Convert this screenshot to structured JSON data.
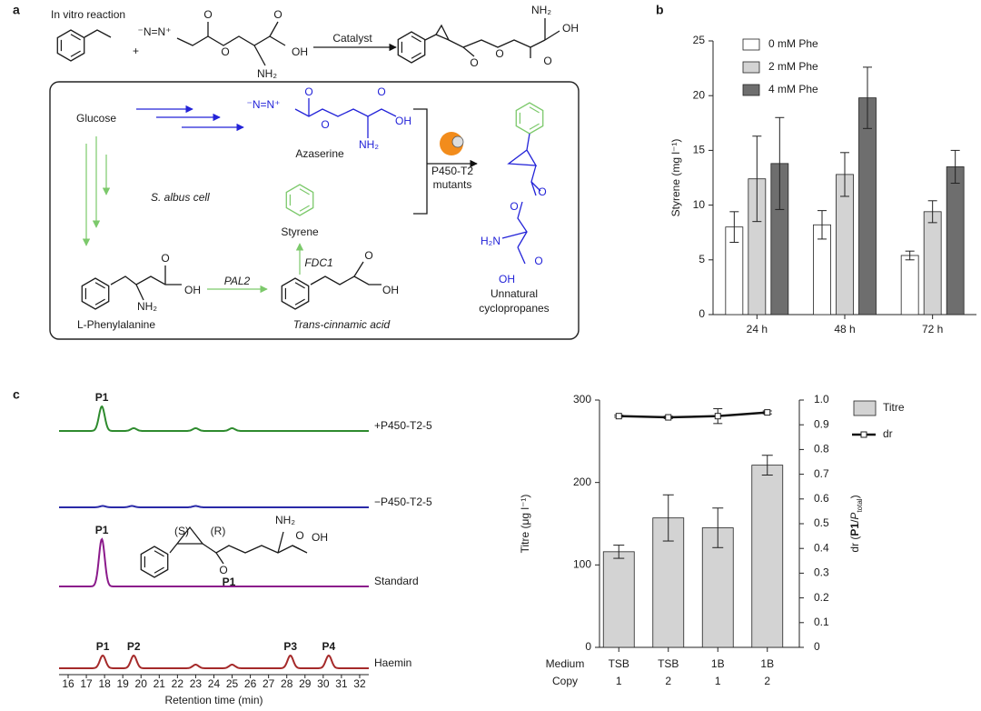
{
  "panel_labels": [
    "a",
    "b",
    "c"
  ],
  "panel_a": {
    "title": "In vitro reaction",
    "plus": "+",
    "catalyst": "Catalyst",
    "glucose": "Glucose",
    "azaserine": "Azaserine",
    "cell": "S. albus cell",
    "styrene": "Styrene",
    "enzyme": [
      "P450-T2",
      "mutants"
    ],
    "product": [
      "Unnatural",
      "cyclopropanes"
    ],
    "phe": "L-Phenylalanine",
    "pal": "PAL2",
    "fdc": "FDC1",
    "cinnamic": "Trans-cinnamic acid",
    "atoms": [
      "⁻N=N⁺",
      "O",
      "O",
      "O",
      "OH",
      "NH₂",
      "NH₂",
      "O",
      "O",
      "OH",
      "O",
      "⁻N=N⁺",
      "O",
      "O",
      "O",
      "OH",
      "NH₂",
      "O",
      "O",
      "H₂N",
      "OH",
      "O",
      "OH",
      "O",
      "NH₂",
      "OH",
      "O"
    ]
  },
  "chart_data": [
    {
      "type": "bar",
      "ylabel": "Styrene (mg l⁻¹)",
      "categories": [
        "24 h",
        "48 h",
        "72 h"
      ],
      "series": [
        {
          "name": "0 mM Phe",
          "color": "#ffffff",
          "values": [
            8.0,
            8.2,
            5.4
          ],
          "errors": [
            1.4,
            1.3,
            0.4
          ]
        },
        {
          "name": "2 mM Phe",
          "color": "#d3d3d3",
          "values": [
            12.4,
            12.8,
            9.4
          ],
          "errors": [
            3.9,
            2.0,
            1.0
          ]
        },
        {
          "name": "4 mM Phe",
          "color": "#6e6e6e",
          "values": [
            13.8,
            19.8,
            13.5
          ],
          "errors": [
            4.2,
            2.8,
            1.5
          ]
        }
      ],
      "ylim": [
        0,
        25
      ],
      "yticks": [
        0,
        5,
        10,
        15,
        20,
        25
      ],
      "legend": "upper left"
    },
    {
      "type": "chromatogram",
      "xlabel": "Retention time (min)",
      "xlim": [
        15.5,
        32.5
      ],
      "xticks": [
        16,
        17,
        18,
        19,
        20,
        21,
        22,
        23,
        24,
        25,
        26,
        27,
        28,
        29,
        30,
        31,
        32
      ],
      "series": [
        {
          "name": "+P450-T2-5",
          "color": "#2e8b2e",
          "peaks": [
            {
              "x": 17.85,
              "label": "P1"
            }
          ],
          "minor_peaks": [
            19.6,
            23.0,
            25.0
          ]
        },
        {
          "name": "−P450-T2-5",
          "color": "#2a2aa8",
          "peaks": [],
          "minor_peaks": [
            17.9,
            19.5,
            23.0
          ]
        },
        {
          "name": "Standard",
          "color": "#8b1a8b",
          "peaks": [
            {
              "x": 17.85,
              "label": "P1"
            }
          ],
          "minor_peaks": []
        },
        {
          "name": "Haemin",
          "color": "#a52a2a",
          "peaks": [
            {
              "x": 17.9,
              "label": "P1"
            },
            {
              "x": 19.6,
              "label": "P2"
            },
            {
              "x": 28.2,
              "label": "P3"
            },
            {
              "x": 30.3,
              "label": "P4"
            }
          ],
          "minor_peaks": [
            23.0,
            25.0
          ]
        }
      ],
      "structure_labels": [
        "(S)",
        "(R)",
        "NH₂",
        "OH",
        "O",
        "O",
        "P1"
      ]
    },
    {
      "type": "bar_line",
      "ylabel": "Titre (μg l⁻¹)",
      "y2label": [
        "dr (",
        "P1",
        "/",
        "P",
        "total",
        ")"
      ],
      "row_labels": [
        "Medium",
        "Copy"
      ],
      "categories": [
        [
          "TSB",
          "1"
        ],
        [
          "TSB",
          "2"
        ],
        [
          "1B",
          "1"
        ],
        [
          "1B",
          "2"
        ]
      ],
      "series": [
        {
          "name": "Titre",
          "color": "#d3d3d3",
          "values": [
            116,
            157,
            145,
            221
          ],
          "errors": [
            8,
            28,
            24,
            12
          ]
        },
        {
          "name": "dr",
          "color": "#111111",
          "axis": "y2",
          "values": [
            0.935,
            0.93,
            0.935,
            0.95
          ],
          "errors": [
            0.004,
            0.005,
            0.03,
            0.006
          ]
        }
      ],
      "ylim": [
        0,
        300
      ],
      "yticks": [
        0,
        100,
        200,
        300
      ],
      "y2lim": [
        0,
        1
      ],
      "y2ticks": [
        0,
        0.1,
        0.2,
        0.3,
        0.4,
        0.5,
        0.6,
        0.7,
        0.8,
        0.9,
        {
          "value": 1,
          "label": "1.0"
        }
      ],
      "legend": "upper right"
    }
  ]
}
